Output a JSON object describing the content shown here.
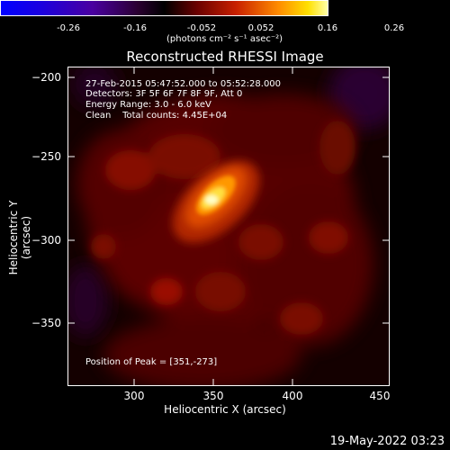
{
  "colorbar": {
    "ticks": [
      "-0.26",
      "-0.16",
      "-0.052",
      "0.052",
      "0.16",
      "0.26"
    ],
    "unit": "(photons cm⁻² s⁻¹ asec⁻²)"
  },
  "title": "Reconstructed RHESSI Image",
  "info": {
    "line1": "27-Feb-2015 05:47:52.000 to 05:52:28.000",
    "line2": "Detectors: 3F 5F 6F 7F 8F 9F, Att 0",
    "line3": "Energy Range: 3.0 - 6.0 keV",
    "line4": "Clean    Total counts: 4.45E+04"
  },
  "axes": {
    "xlabel": "Heliocentric X (arcsec)",
    "ylabel": "Heliocentric Y (arcsec)",
    "xticks": [
      "300",
      "350",
      "400",
      "450"
    ],
    "yticks": [
      "−200",
      "−250",
      "−300",
      "−350"
    ]
  },
  "peak": "Position of Peak = [351,-273]",
  "timestamp": "19-May-2022 03:23"
}
